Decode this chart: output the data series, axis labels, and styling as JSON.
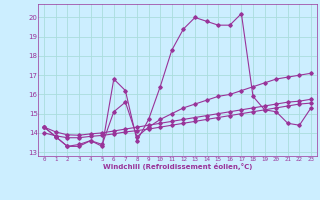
{
  "xlabel": "Windchill (Refroidissement éolien,°C)",
  "bg_color": "#cceeff",
  "grid_color": "#aadddd",
  "line_color": "#993399",
  "x_ticks": [
    0,
    1,
    2,
    3,
    4,
    5,
    6,
    7,
    8,
    9,
    10,
    11,
    12,
    13,
    14,
    15,
    16,
    17,
    18,
    19,
    20,
    21,
    22,
    23
  ],
  "y_ticks": [
    13,
    14,
    15,
    16,
    17,
    18,
    19,
    20
  ],
  "ylim": [
    12.8,
    20.7
  ],
  "xlim": [
    -0.5,
    23.5
  ],
  "series1_x": [
    0,
    1,
    2,
    3,
    4,
    5,
    6,
    7,
    8,
    9,
    10,
    11,
    12,
    13,
    14,
    15,
    16,
    17,
    18,
    19,
    20,
    21,
    22,
    23
  ],
  "series1_y": [
    14.3,
    13.8,
    13.3,
    13.3,
    13.6,
    13.3,
    16.8,
    16.2,
    13.6,
    14.7,
    16.4,
    18.3,
    19.4,
    20.0,
    19.8,
    19.6,
    19.6,
    20.2,
    15.9,
    15.2,
    15.1,
    14.5,
    14.4,
    15.3
  ],
  "series2_x": [
    0,
    1,
    2,
    3,
    4,
    5,
    6,
    7,
    8,
    9,
    10,
    11,
    12,
    13,
    14,
    15,
    16,
    17,
    18,
    19,
    20,
    21,
    22,
    23
  ],
  "series2_y": [
    14.3,
    13.8,
    13.3,
    13.4,
    13.6,
    13.4,
    15.1,
    15.6,
    13.8,
    14.3,
    14.7,
    15.0,
    15.3,
    15.5,
    15.7,
    15.9,
    16.0,
    16.2,
    16.4,
    16.6,
    16.8,
    16.9,
    17.0,
    17.1
  ],
  "series3_x": [
    0,
    1,
    2,
    3,
    4,
    5,
    6,
    7,
    8,
    9,
    10,
    11,
    12,
    13,
    14,
    15,
    16,
    17,
    18,
    19,
    20,
    21,
    22,
    23
  ],
  "series3_y": [
    14.0,
    13.85,
    13.75,
    13.75,
    13.82,
    13.87,
    13.95,
    14.05,
    14.12,
    14.2,
    14.3,
    14.4,
    14.5,
    14.6,
    14.7,
    14.8,
    14.9,
    15.0,
    15.1,
    15.2,
    15.3,
    15.4,
    15.5,
    15.55
  ],
  "series4_x": [
    0,
    1,
    2,
    3,
    4,
    5,
    6,
    7,
    8,
    9,
    10,
    11,
    12,
    13,
    14,
    15,
    16,
    17,
    18,
    19,
    20,
    21,
    22,
    23
  ],
  "series4_y": [
    14.3,
    14.05,
    13.9,
    13.88,
    13.95,
    14.0,
    14.1,
    14.2,
    14.3,
    14.4,
    14.5,
    14.6,
    14.7,
    14.8,
    14.9,
    15.0,
    15.1,
    15.2,
    15.3,
    15.4,
    15.5,
    15.6,
    15.65,
    15.75
  ]
}
